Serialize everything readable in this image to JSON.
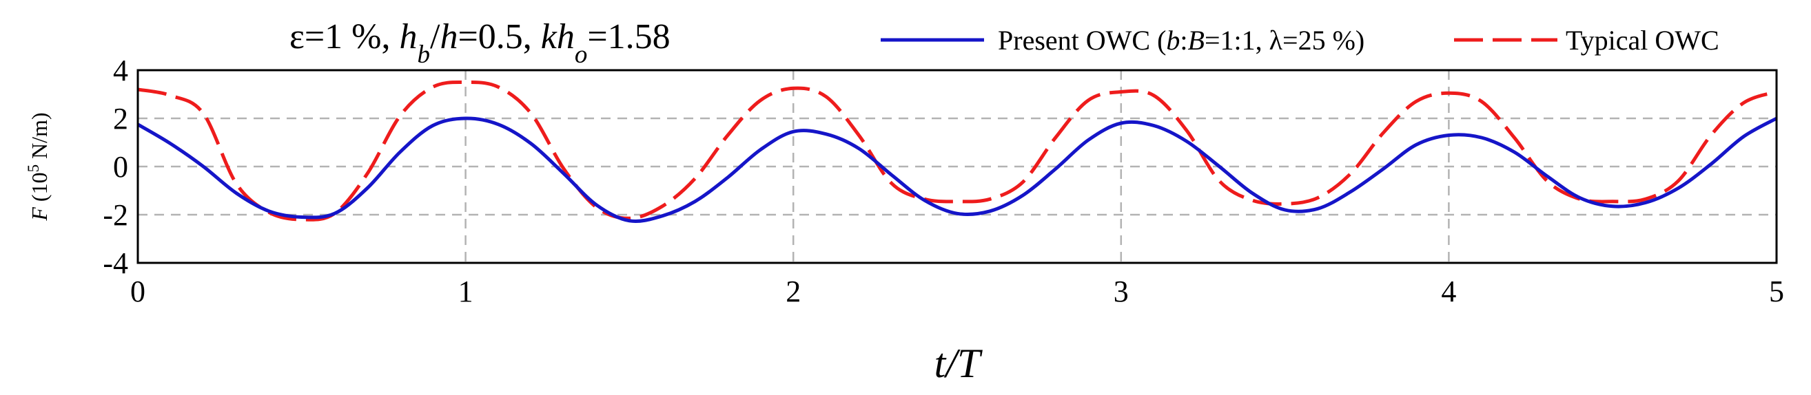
{
  "chart_data": {
    "type": "line",
    "title": {
      "parts": [
        {
          "t": "ε=1 %, ",
          "i": false
        },
        {
          "t": "h",
          "i": true
        },
        {
          "t": "b",
          "i": true,
          "sub": true
        },
        {
          "t": "/",
          "i": false
        },
        {
          "t": "h",
          "i": true
        },
        {
          "t": "=0.5, ",
          "i": false
        },
        {
          "t": "kh",
          "i": true
        },
        {
          "t": "o",
          "i": true,
          "sub": true
        },
        {
          "t": "=1.58",
          "i": false
        }
      ]
    },
    "xlabel": {
      "parts": [
        {
          "t": "t",
          "i": true
        },
        {
          "t": "/",
          "i": false
        },
        {
          "t": "T",
          "i": true
        }
      ]
    },
    "ylabel": {
      "parts": [
        {
          "t": "F",
          "i": true
        },
        {
          "t": " (10",
          "i": false
        },
        {
          "t": "5",
          "i": false,
          "sup": true
        },
        {
          "t": " N/m)",
          "i": false
        }
      ]
    },
    "xlim": [
      0,
      5
    ],
    "ylim": [
      -4,
      4
    ],
    "xticks": [
      0,
      1,
      2,
      3,
      4,
      5
    ],
    "yticks": [
      -4,
      -2,
      0,
      2,
      4
    ],
    "grid": true,
    "legend_position": "top-right",
    "series": [
      {
        "name": "Present OWC (b:B=1:1, λ=25 %)",
        "name_parts": [
          {
            "t": "Present OWC (",
            "i": false
          },
          {
            "t": "b",
            "i": true
          },
          {
            "t": ":",
            "i": false
          },
          {
            "t": "B",
            "i": true
          },
          {
            "t": "=1:1, λ=25 %)",
            "i": false
          }
        ],
        "color": "#1515c8",
        "dash": "solid",
        "x": [
          0,
          0.1,
          0.2,
          0.3,
          0.4,
          0.5,
          0.6,
          0.7,
          0.8,
          0.9,
          1.0,
          1.1,
          1.2,
          1.3,
          1.4,
          1.5,
          1.6,
          1.7,
          1.8,
          1.9,
          2.0,
          2.1,
          2.2,
          2.3,
          2.4,
          2.5,
          2.6,
          2.7,
          2.8,
          2.9,
          3.0,
          3.1,
          3.2,
          3.3,
          3.4,
          3.5,
          3.6,
          3.7,
          3.8,
          3.9,
          4.0,
          4.1,
          4.2,
          4.3,
          4.4,
          4.5,
          4.6,
          4.7,
          4.8,
          4.9,
          5.0
        ],
        "y": [
          1.75,
          0.95,
          0.0,
          -1.1,
          -1.85,
          -2.1,
          -1.95,
          -0.9,
          0.6,
          1.7,
          2.0,
          1.75,
          0.95,
          -0.3,
          -1.6,
          -2.25,
          -2.05,
          -1.45,
          -0.45,
          0.7,
          1.45,
          1.35,
          0.75,
          -0.35,
          -1.4,
          -1.95,
          -1.85,
          -1.2,
          -0.1,
          1.1,
          1.8,
          1.7,
          1.05,
          0.0,
          -1.1,
          -1.8,
          -1.75,
          -1.05,
          -0.1,
          0.9,
          1.3,
          1.2,
          0.6,
          -0.4,
          -1.3,
          -1.65,
          -1.5,
          -0.9,
          0.1,
          1.25,
          2.0
        ]
      },
      {
        "name": "Typical OWC",
        "name_parts": [
          {
            "t": "Typical OWC",
            "i": false
          }
        ],
        "color": "#ee1c1c",
        "dash": "dashed",
        "x": [
          0,
          0.1,
          0.2,
          0.3,
          0.4,
          0.5,
          0.6,
          0.7,
          0.8,
          0.9,
          1.0,
          1.1,
          1.2,
          1.3,
          1.4,
          1.5,
          1.6,
          1.7,
          1.8,
          1.9,
          2.0,
          2.1,
          2.2,
          2.3,
          2.4,
          2.5,
          2.6,
          2.7,
          2.8,
          2.9,
          3.0,
          3.1,
          3.2,
          3.3,
          3.4,
          3.5,
          3.6,
          3.7,
          3.8,
          3.9,
          4.0,
          4.1,
          4.2,
          4.3,
          4.4,
          4.5,
          4.6,
          4.7,
          4.8,
          4.9,
          5.0
        ],
        "y": [
          3.2,
          2.95,
          2.2,
          -0.7,
          -1.9,
          -2.2,
          -1.95,
          -0.3,
          2.1,
          3.3,
          3.5,
          3.3,
          2.2,
          -0.1,
          -1.7,
          -2.15,
          -1.65,
          -0.5,
          1.3,
          2.75,
          3.25,
          2.9,
          1.3,
          -0.7,
          -1.35,
          -1.45,
          -1.35,
          -0.65,
          1.2,
          2.75,
          3.1,
          2.95,
          1.5,
          -0.6,
          -1.4,
          -1.55,
          -1.3,
          -0.3,
          1.4,
          2.7,
          3.05,
          2.7,
          1.2,
          -0.6,
          -1.35,
          -1.45,
          -1.35,
          -0.6,
          1.3,
          2.65,
          3.1
        ]
      }
    ]
  }
}
